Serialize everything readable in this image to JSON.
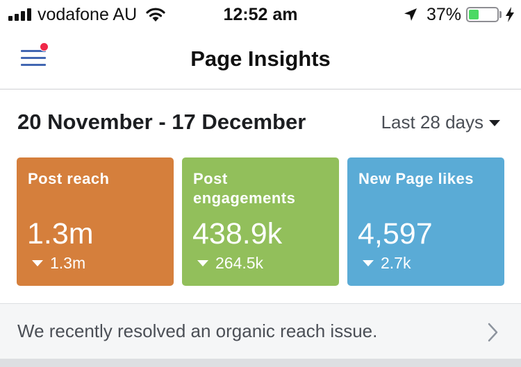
{
  "status_bar": {
    "carrier": "vodafone AU",
    "time": "12:52 am",
    "battery_percent": "37%",
    "battery_level": 0.37,
    "icons": [
      "signal-icon",
      "wifi-icon",
      "location-arrow-icon",
      "battery-icon",
      "charging-icon"
    ]
  },
  "nav": {
    "title": "Page Insights",
    "menu_icon": "hamburger-menu-icon",
    "has_notification_dot": true
  },
  "date_row": {
    "range": "20 November - 17 December",
    "period": "Last 28 days"
  },
  "cards": [
    {
      "title": "Post reach",
      "value": "1.3m",
      "delta": "1.3m",
      "delta_direction": "down",
      "color": "#d57f3c"
    },
    {
      "title": "Post engagements",
      "value": "438.9k",
      "delta": "264.5k",
      "delta_direction": "down",
      "color": "#92bf5b"
    },
    {
      "title": "New Page likes",
      "value": "4,597",
      "delta": "2.7k",
      "delta_direction": "down",
      "color": "#5aabd6"
    }
  ],
  "notice": {
    "text": "We recently resolved an organic reach issue.",
    "icon": "chevron-right-icon"
  },
  "colors": {
    "accent": "#4267b2",
    "notification": "#f02849",
    "battery": "#4cd964"
  }
}
